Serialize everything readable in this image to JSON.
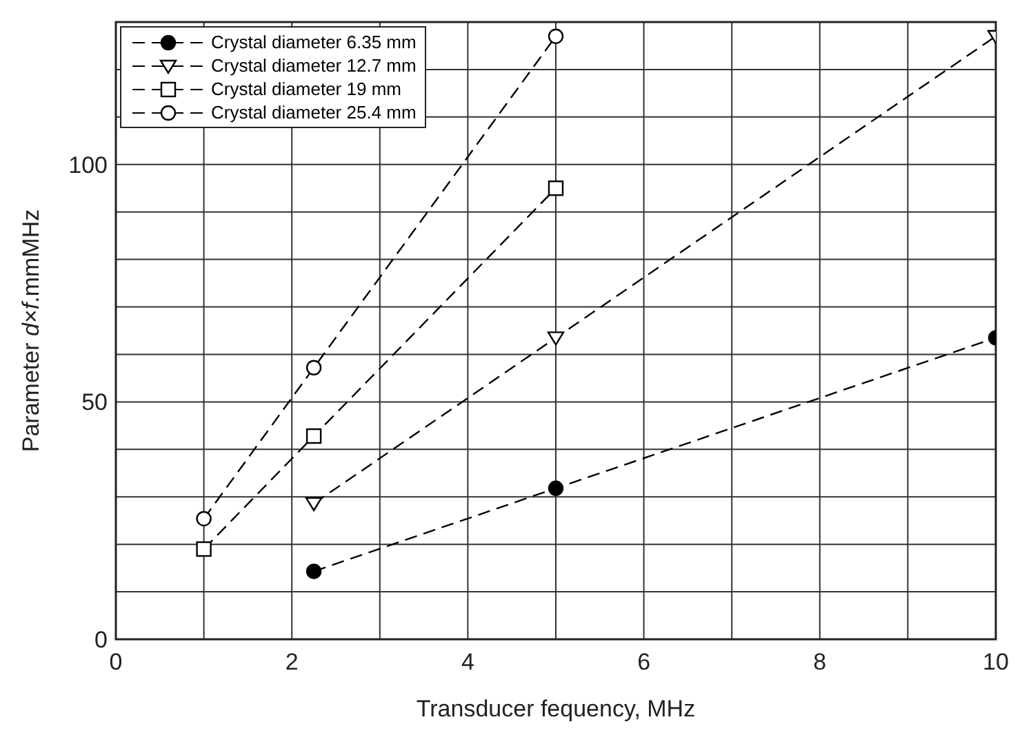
{
  "chart_data": {
    "type": "line",
    "xlabel": "Transducer fequency, MHz",
    "ylabel": "Parameter d×f.mmMHz",
    "xlim": [
      0,
      10
    ],
    "ylim": [
      0,
      130
    ],
    "xticks": [
      0,
      {
        "value": 1,
        "label": null
      },
      2,
      {
        "value": 3,
        "label": null
      },
      4,
      {
        "value": 5,
        "label": null
      },
      6,
      {
        "value": 7,
        "label": null
      },
      8,
      {
        "value": 9,
        "label": null
      },
      10
    ],
    "yticks": [
      0,
      {
        "value": 10,
        "label": null
      },
      {
        "value": 20,
        "label": null
      },
      {
        "value": 30,
        "label": null
      },
      {
        "value": 40,
        "label": null
      },
      50,
      {
        "value": 60,
        "label": null
      },
      {
        "value": 70,
        "label": null
      },
      {
        "value": 80,
        "label": null
      },
      {
        "value": 90,
        "label": null
      },
      100,
      {
        "value": 110,
        "label": null
      },
      {
        "value": 120,
        "label": null
      },
      {
        "value": 130,
        "label": null
      }
    ],
    "grid": true,
    "legend": "top left",
    "line_style": "dashed",
    "series": [
      {
        "name": "Crystal diameter 6.35 mm",
        "color": "#000000",
        "marker": "circle",
        "x": [
          2.25,
          5,
          10
        ],
        "values": [
          14.3,
          31.8,
          63.5
        ]
      },
      {
        "name": "Crystal diameter 12.7 mm",
        "color": "#000000",
        "marker": "triangle",
        "x": [
          2.25,
          5,
          10
        ],
        "values": [
          28.6,
          63.5,
          127
        ]
      },
      {
        "name": "Crystal diameter 19 mm",
        "color": "#000000",
        "marker": "square",
        "x": [
          1,
          2.25,
          5
        ],
        "values": [
          19,
          42.8,
          95
        ]
      },
      {
        "name": "Crystal diameter 25.4 mm",
        "color": "#000000",
        "marker": "circle",
        "x": [
          1,
          2.25,
          5
        ],
        "values": [
          25.4,
          57.2,
          127
        ]
      }
    ]
  }
}
